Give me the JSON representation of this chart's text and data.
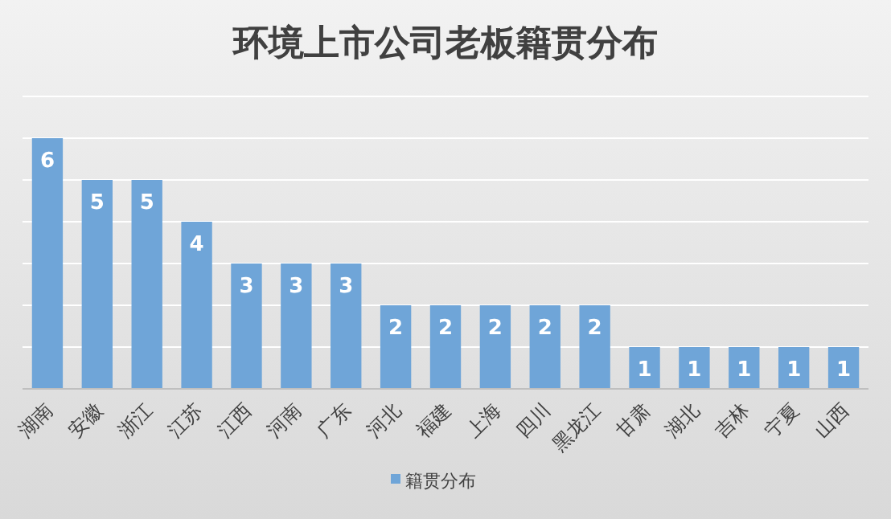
{
  "chart_data": {
    "type": "bar",
    "title": "环境上市公司老板籍贯分布",
    "categories": [
      "湖南",
      "安徽",
      "浙江",
      "江苏",
      "江西",
      "河南",
      "广东",
      "河北",
      "福建",
      "上海",
      "四川",
      "黑龙江",
      "甘肃",
      "湖北",
      "吉林",
      "宁夏",
      "山西"
    ],
    "series": [
      {
        "name": "籍贯分布",
        "color": "#6fa5d8",
        "values": [
          6,
          5,
          5,
          4,
          3,
          3,
          3,
          2,
          2,
          2,
          2,
          2,
          1,
          1,
          1,
          1,
          1
        ]
      }
    ],
    "ylim": [
      0,
      7
    ],
    "yticks": [
      {
        "value": 0,
        "label": null
      },
      {
        "value": 1,
        "label": null
      },
      {
        "value": 2,
        "label": null
      },
      {
        "value": 3,
        "label": null
      },
      {
        "value": 4,
        "label": null
      },
      {
        "value": 5,
        "label": null
      },
      {
        "value": 6,
        "label": null
      },
      {
        "value": 7,
        "label": null
      }
    ],
    "tick_labels": "x",
    "grid": "y",
    "data_labels": true,
    "legend": "bottom"
  }
}
